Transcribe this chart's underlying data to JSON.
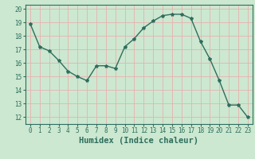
{
  "x": [
    0,
    1,
    2,
    3,
    4,
    5,
    6,
    7,
    8,
    9,
    10,
    11,
    12,
    13,
    14,
    15,
    16,
    17,
    18,
    19,
    20,
    21,
    22,
    23
  ],
  "y": [
    18.9,
    17.2,
    16.9,
    16.2,
    15.4,
    15.0,
    14.7,
    15.8,
    15.8,
    15.6,
    17.2,
    17.8,
    18.6,
    19.1,
    19.5,
    19.6,
    19.6,
    19.3,
    17.6,
    16.3,
    14.7,
    12.9,
    12.9,
    12.0
  ],
  "xlim": [
    -0.5,
    23.5
  ],
  "ylim": [
    11.5,
    20.3
  ],
  "yticks": [
    12,
    13,
    14,
    15,
    16,
    17,
    18,
    19,
    20
  ],
  "xticks": [
    0,
    1,
    2,
    3,
    4,
    5,
    6,
    7,
    8,
    9,
    10,
    11,
    12,
    13,
    14,
    15,
    16,
    17,
    18,
    19,
    20,
    21,
    22,
    23
  ],
  "xlabel": "Humidex (Indice chaleur)",
  "line_color": "#2e6e5e",
  "marker": "*",
  "bg_color": "#cce8d0",
  "grid_color_v": "#e8b0b0",
  "grid_color_h": "#e8b0b0",
  "axis_color": "#2e6e5e",
  "label_color": "#2e6e5e",
  "tick_label_fontsize": 5.5,
  "xlabel_fontsize": 7.5
}
